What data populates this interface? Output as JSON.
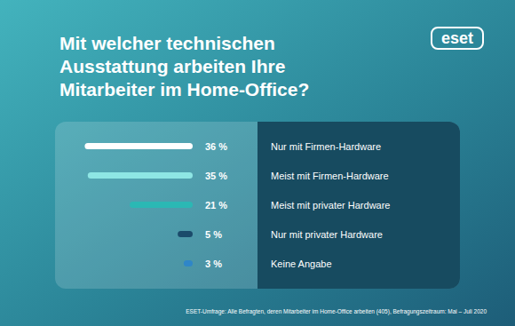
{
  "chart_data": {
    "type": "bar",
    "title": "Mit welcher technischen Ausstattung arbeiten Ihre Mitarbeiter im Home-Office?",
    "annotations": [
      "eset",
      "ESET-Umfrage: Alle Befragten, deren Mitarbeiter im Home-Office arbeiten (405), Befragungszeitraum: Mai – Juli 2020"
    ],
    "categories": [
      "Nur mit Firmen-Hardware",
      "Meist mit Firmen-Hardware",
      "Meist mit privater Hardware",
      "Nur mit privater Hardware",
      "Keine Angabe"
    ],
    "values": [
      36,
      35,
      21,
      5,
      3
    ],
    "value_labels": [
      "36 %",
      "35 %",
      "21 %",
      "5 %",
      "3 %"
    ],
    "colors": [
      "#ffffff",
      "#8ee6e4",
      "#2bb8b4",
      "#1b4b6b",
      "#2f86c8"
    ],
    "orientation": "horizontal",
    "xlim": [
      0,
      45
    ],
    "data_labels": true,
    "tick_labels": false,
    "grid": false
  }
}
